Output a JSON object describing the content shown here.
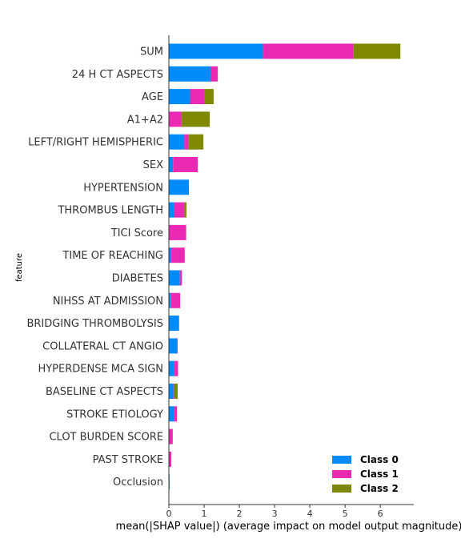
{
  "chart_data": {
    "type": "bar",
    "orientation": "horizontal",
    "stacked": true,
    "categories": [
      "SUM",
      "24 H CT ASPECTS",
      "AGE",
      "A1+A2",
      "LEFT/RIGHT HEMISPHERIC",
      "SEX",
      "HYPERTENSION",
      "THROMBUS LENGTH",
      "TICI Score",
      "TIME OF REACHING",
      "DIABETES",
      "NIHSS AT ADMISSION",
      "BRIDGING THROMBOLYSIS",
      "COLLATERAL CT ANGIO",
      "HYPERDENSE MCA SIGN",
      "BASELINE CT ASPECTS",
      "STROKE ETIOLOGY",
      "CLOT BURDEN SCORE",
      "PAST STROKE",
      "Occlusion"
    ],
    "series": [
      {
        "name": "Class 0",
        "color": "#008bfb",
        "values": [
          2.67,
          1.18,
          0.59,
          0.01,
          0.44,
          0.12,
          0.57,
          0.15,
          0.01,
          0.07,
          0.31,
          0.05,
          0.29,
          0.23,
          0.15,
          0.13,
          0.15,
          0.01,
          0.01,
          0.02
        ]
      },
      {
        "name": "Class 1",
        "color": "#ea2ab3",
        "values": [
          2.57,
          0.21,
          0.43,
          0.35,
          0.12,
          0.7,
          0.0,
          0.29,
          0.48,
          0.38,
          0.06,
          0.27,
          0.0,
          0.02,
          0.11,
          0.03,
          0.08,
          0.1,
          0.06,
          0.0
        ]
      },
      {
        "name": "Class 2",
        "color": "#7e8800",
        "values": [
          1.33,
          0.0,
          0.25,
          0.8,
          0.42,
          0.0,
          0.0,
          0.06,
          0.0,
          0.0,
          0.0,
          0.0,
          0.0,
          0.0,
          0.0,
          0.09,
          0.0,
          0.0,
          0.0,
          0.0
        ]
      }
    ],
    "xlabel": "mean(|SHAP value|) (average impact on model output magnitude)",
    "ylabel": "feature",
    "xlim": [
      0,
      6.95
    ],
    "xticks": [
      0,
      1,
      2,
      3,
      4,
      5,
      6
    ],
    "grid": false,
    "legend_position": "bottom-right"
  }
}
